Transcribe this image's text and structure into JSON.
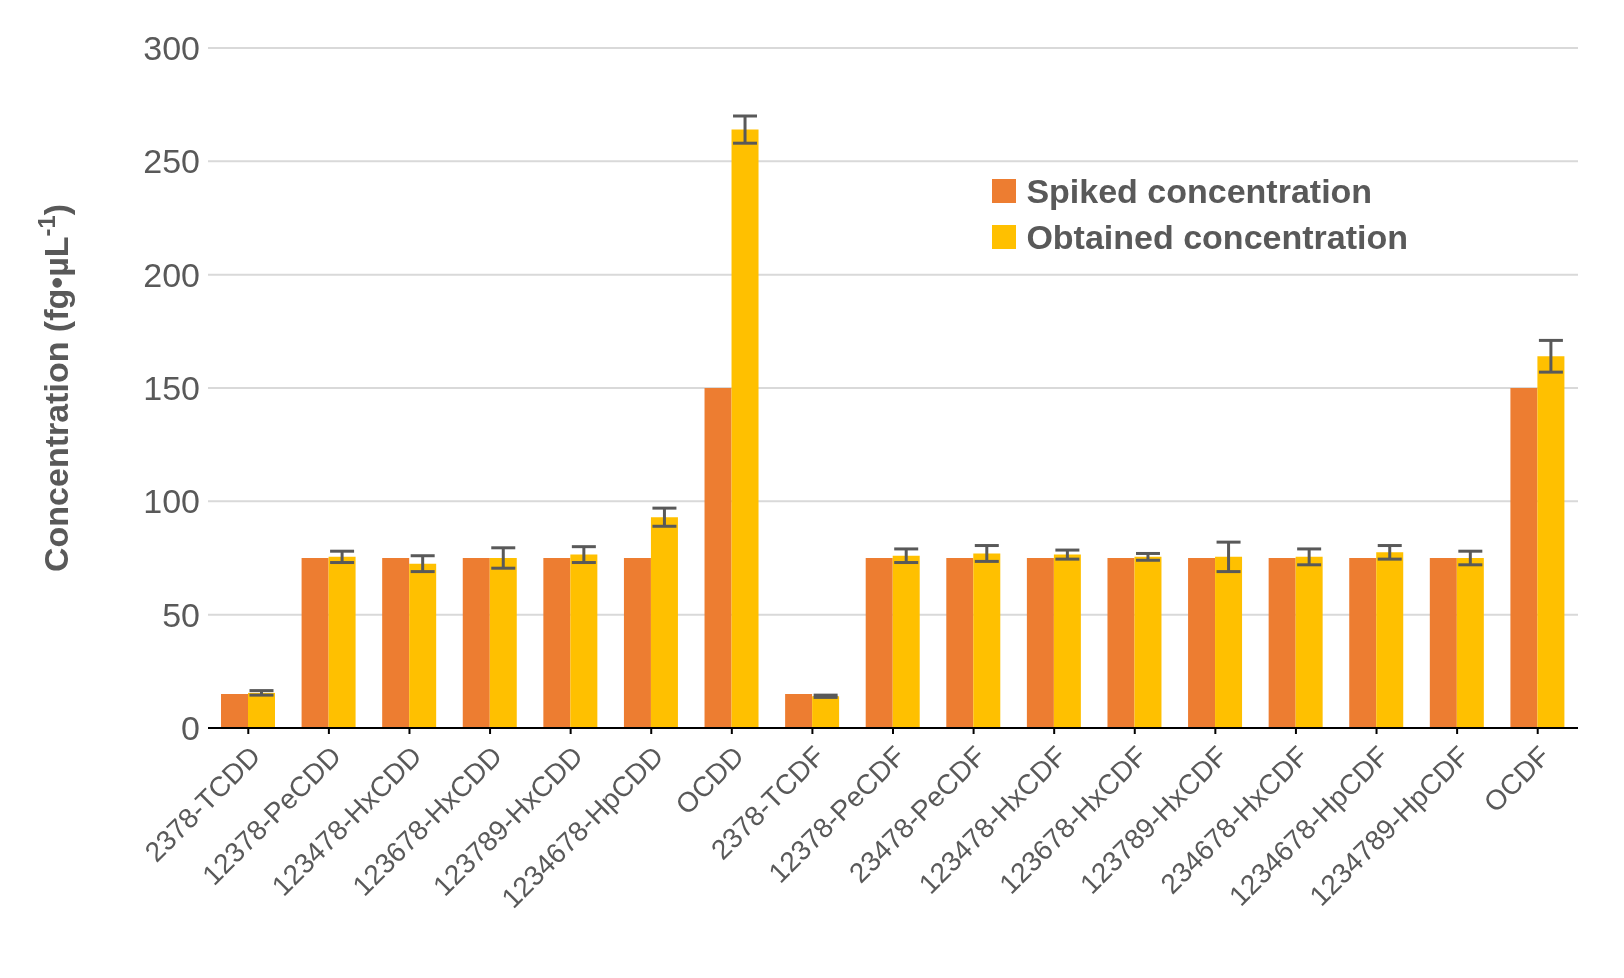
{
  "chart_data": {
    "type": "bar",
    "ylabel": "Concentration (fg•µL$^{-1}$)",
    "categories": [
      "2378-TCDD",
      "12378-PeCDD",
      "123478-HxCDD",
      "123678-HxCDD",
      "123789-HxCDD",
      "1234678-HpCDD",
      "OCDD",
      "2378-TCDF",
      "12378-PeCDF",
      "23478-PeCDF",
      "123478-HxCDF",
      "123678-HxCDF",
      "123789-HxCDF",
      "234678-HxCDF",
      "1234678-HpCDF",
      "1234789-HpCDF",
      "OCDF"
    ],
    "series": [
      {
        "name": "Spiked concentration",
        "color": "#ed7d31",
        "values": [
          15,
          75,
          75,
          75,
          75,
          75,
          150,
          15,
          75,
          75,
          75,
          75,
          75,
          75,
          75,
          75,
          150
        ]
      },
      {
        "name": "Obtained concentration",
        "color": "#ffc000",
        "values": [
          15.5,
          75.5,
          72.5,
          75,
          76.5,
          93,
          264,
          14,
          76,
          77,
          76.5,
          75.5,
          75.5,
          75.5,
          77.5,
          75,
          164
        ],
        "errors": [
          1,
          2.5,
          3.5,
          4.5,
          3.5,
          4,
          6,
          0.5,
          3,
          3.5,
          2,
          1.5,
          6.5,
          3.5,
          3,
          3,
          7
        ]
      }
    ],
    "ylim": [
      0,
      300
    ],
    "yticks": [
      0,
      50,
      100,
      150,
      200,
      250,
      300
    ],
    "grid": "y",
    "legend": "top right"
  }
}
